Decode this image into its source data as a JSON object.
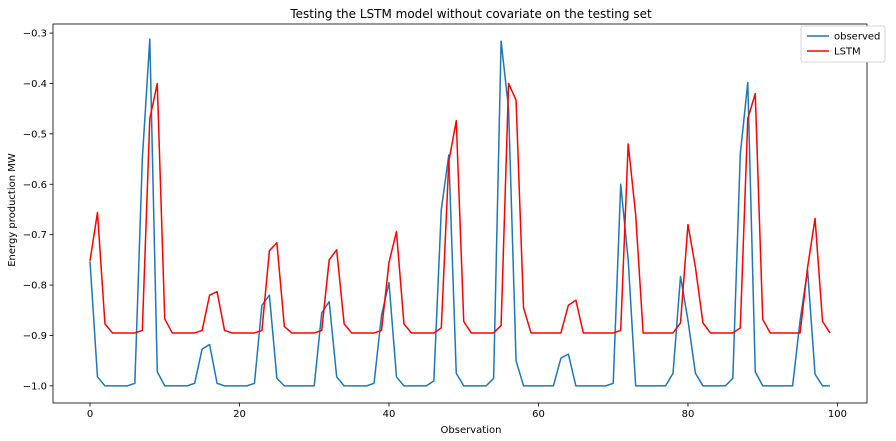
{
  "chart_data": {
    "type": "line",
    "title": "Testing the LSTM model without covariate on the testing set",
    "xlabel": "Observation",
    "ylabel": "Energy production MW",
    "xlim": [
      -4.95,
      103.95
    ],
    "ylim": [
      -1.034,
      -0.282
    ],
    "xticks": [
      0,
      20,
      40,
      60,
      80,
      100
    ],
    "yticks": [
      -1.0,
      -0.9,
      -0.8,
      -0.7,
      -0.6,
      -0.5,
      -0.4,
      -0.3
    ],
    "ytick_labels": [
      "−1.0",
      "−0.9",
      "−0.8",
      "−0.7",
      "−0.6",
      "−0.5",
      "−0.4",
      "−0.3"
    ],
    "grid": false,
    "legend_position": "top-right",
    "series": [
      {
        "name": "observed",
        "color": "#1f77b4",
        "values": [
          -0.753,
          -0.982,
          -1.0,
          -1.0,
          -1.0,
          -1.0,
          -0.995,
          -0.55,
          -0.312,
          -0.972,
          -1.0,
          -1.0,
          -1.0,
          -1.0,
          -0.995,
          -0.927,
          -0.918,
          -0.995,
          -1.0,
          -1.0,
          -1.0,
          -1.0,
          -0.995,
          -0.84,
          -0.82,
          -0.985,
          -1.0,
          -1.0,
          -1.0,
          -1.0,
          -1.0,
          -0.855,
          -0.833,
          -0.982,
          -1.0,
          -1.0,
          -1.0,
          -1.0,
          -0.995,
          -0.86,
          -0.795,
          -0.982,
          -1.0,
          -1.0,
          -1.0,
          -1.0,
          -0.99,
          -0.65,
          -0.542,
          -0.975,
          -1.0,
          -1.0,
          -1.0,
          -1.0,
          -0.985,
          -0.316,
          -0.45,
          -0.95,
          -1.0,
          -1.0,
          -1.0,
          -1.0,
          -1.0,
          -0.945,
          -0.937,
          -1.0,
          -1.0,
          -1.0,
          -1.0,
          -1.0,
          -0.995,
          -0.6,
          -0.75,
          -1.0,
          -1.0,
          -1.0,
          -1.0,
          -1.0,
          -0.975,
          -0.783,
          -0.87,
          -0.975,
          -1.0,
          -1.0,
          -1.0,
          -1.0,
          -0.985,
          -0.54,
          -0.398,
          -0.972,
          -1.0,
          -1.0,
          -1.0,
          -1.0,
          -1.0,
          -0.87,
          -0.77,
          -0.977,
          -1.0,
          -1.0
        ]
      },
      {
        "name": "LSTM",
        "color": "#ff0000",
        "values": [
          -0.752,
          -0.656,
          -0.877,
          -0.895,
          -0.895,
          -0.895,
          -0.895,
          -0.89,
          -0.47,
          -0.4,
          -0.867,
          -0.895,
          -0.895,
          -0.895,
          -0.895,
          -0.89,
          -0.82,
          -0.813,
          -0.89,
          -0.895,
          -0.895,
          -0.895,
          -0.895,
          -0.89,
          -0.732,
          -0.716,
          -0.882,
          -0.895,
          -0.895,
          -0.895,
          -0.895,
          -0.89,
          -0.75,
          -0.73,
          -0.877,
          -0.895,
          -0.895,
          -0.895,
          -0.895,
          -0.89,
          -0.755,
          -0.694,
          -0.877,
          -0.895,
          -0.895,
          -0.895,
          -0.895,
          -0.885,
          -0.555,
          -0.474,
          -0.872,
          -0.895,
          -0.895,
          -0.895,
          -0.895,
          -0.88,
          -0.4,
          -0.433,
          -0.845,
          -0.895,
          -0.895,
          -0.895,
          -0.895,
          -0.895,
          -0.84,
          -0.83,
          -0.895,
          -0.895,
          -0.895,
          -0.895,
          -0.895,
          -0.89,
          -0.52,
          -0.66,
          -0.895,
          -0.895,
          -0.895,
          -0.895,
          -0.895,
          -0.875,
          -0.68,
          -0.765,
          -0.875,
          -0.895,
          -0.895,
          -0.895,
          -0.895,
          -0.885,
          -0.47,
          -0.42,
          -0.868,
          -0.895,
          -0.895,
          -0.895,
          -0.895,
          -0.895,
          -0.765,
          -0.668,
          -0.872,
          -0.895
        ]
      }
    ]
  }
}
